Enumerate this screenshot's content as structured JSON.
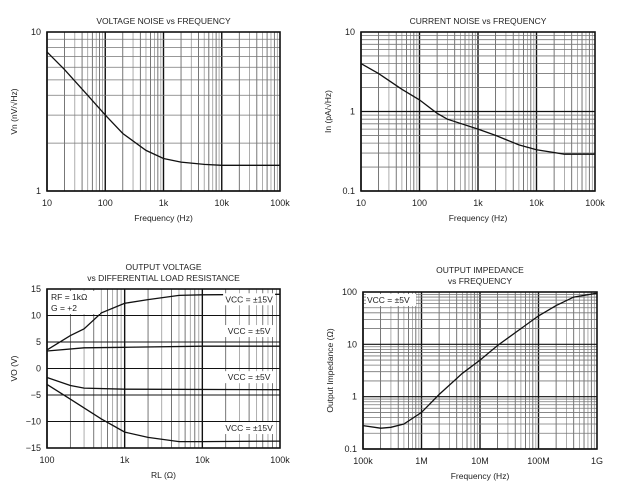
{
  "chart_data": [
    {
      "type": "line",
      "title": [
        "VOLTAGE NOISE vs FREQUENCY"
      ],
      "xlabel": "Frequency (Hz)",
      "ylabel": "Vn (nV/√Hz)",
      "xscale": "log",
      "yscale": "log",
      "xlim": [
        10,
        100000
      ],
      "ylim": [
        1,
        10
      ],
      "xticks": [
        {
          "v": 10,
          "label": "10"
        },
        {
          "v": 100,
          "label": "100"
        },
        {
          "v": 1000,
          "label": "1k"
        },
        {
          "v": 10000,
          "label": "10k"
        },
        {
          "v": 100000,
          "label": "100k"
        }
      ],
      "yticks": [
        {
          "v": 1,
          "label": "1"
        },
        {
          "v": 10,
          "label": "10"
        }
      ],
      "grid": true,
      "series": [
        {
          "name": "Vn",
          "x": [
            10,
            20,
            50,
            100,
            200,
            500,
            1000,
            2000,
            5000,
            10000,
            30000,
            100000
          ],
          "y": [
            7.5,
            5.8,
            4.0,
            3.0,
            2.3,
            1.8,
            1.6,
            1.52,
            1.47,
            1.45,
            1.45,
            1.45
          ]
        }
      ],
      "annotations": []
    },
    {
      "type": "line",
      "title": [
        "CURRENT NOISE vs FREQUENCY"
      ],
      "xlabel": "Frequency (Hz)",
      "ylabel": "In (pA/√Hz)",
      "xscale": "log",
      "yscale": "log",
      "xlim": [
        10,
        100000
      ],
      "ylim": [
        0.1,
        10
      ],
      "xticks": [
        {
          "v": 10,
          "label": "10"
        },
        {
          "v": 100,
          "label": "100"
        },
        {
          "v": 1000,
          "label": "1k"
        },
        {
          "v": 10000,
          "label": "10k"
        },
        {
          "v": 100000,
          "label": "100k"
        }
      ],
      "yticks": [
        {
          "v": 0.1,
          "label": "0.1"
        },
        {
          "v": 1,
          "label": "1"
        },
        {
          "v": 10,
          "label": "10"
        }
      ],
      "grid": true,
      "series": [
        {
          "name": "In",
          "x": [
            10,
            20,
            50,
            100,
            200,
            300,
            1000,
            2000,
            5000,
            10000,
            30000,
            100000
          ],
          "y": [
            4.0,
            3.0,
            1.9,
            1.4,
            0.95,
            0.8,
            0.6,
            0.5,
            0.38,
            0.33,
            0.29,
            0.29
          ]
        }
      ],
      "annotations": []
    },
    {
      "type": "line",
      "title": [
        "OUTPUT VOLTAGE",
        "vs DIFFERENTIAL LOAD RESISTANCE"
      ],
      "xlabel": "RL (Ω)",
      "ylabel": "VO (V)",
      "xscale": "log",
      "yscale": "linear",
      "xlim": [
        100,
        100000
      ],
      "ylim": [
        -15,
        15
      ],
      "xticks": [
        {
          "v": 100,
          "label": "100"
        },
        {
          "v": 1000,
          "label": "1k"
        },
        {
          "v": 10000,
          "label": "10k"
        },
        {
          "v": 100000,
          "label": "100k"
        }
      ],
      "yticks": [
        {
          "v": -15,
          "label": "−15"
        },
        {
          "v": -10,
          "label": "−10"
        },
        {
          "v": -5,
          "label": "−5"
        },
        {
          "v": 0,
          "label": "0"
        },
        {
          "v": 5,
          "label": "5"
        },
        {
          "v": 10,
          "label": "10"
        },
        {
          "v": 15,
          "label": "15"
        }
      ],
      "grid": true,
      "series": [
        {
          "name": "VCC = ±15V (positive)",
          "x": [
            100,
            200,
            300,
            500,
            1000,
            2000,
            5000,
            10000,
            100000
          ],
          "y": [
            3.5,
            6.2,
            7.5,
            10.5,
            12.3,
            13.0,
            13.8,
            13.9,
            14.0
          ]
        },
        {
          "name": "VCC = ±5V (positive)",
          "x": [
            100,
            300,
            1000,
            10000,
            100000
          ],
          "y": [
            3.3,
            3.9,
            4.0,
            4.2,
            4.2
          ]
        },
        {
          "name": "VCC = ±5V (negative)",
          "x": [
            100,
            200,
            300,
            1000,
            100000
          ],
          "y": [
            -1.7,
            -3.2,
            -3.7,
            -3.9,
            -4.0
          ]
        },
        {
          "name": "VCC = ±15V (negative)",
          "x": [
            100,
            200,
            500,
            1000,
            2000,
            5000,
            10000,
            100000
          ],
          "y": [
            -3.0,
            -5.8,
            -9.5,
            -12.0,
            -13.0,
            -13.8,
            -13.8,
            -13.7
          ]
        }
      ],
      "annotations": [
        {
          "text": "RF = 1kΩ",
          "pos": "top-left-1"
        },
        {
          "text": "G = +2",
          "pos": "top-left-2"
        },
        {
          "text": "VCC = ±15V",
          "at": [
            40000,
            12.5
          ]
        },
        {
          "text": "VCC = ±5V",
          "at": [
            40000,
            6.5
          ]
        },
        {
          "text": "VCC = ±5V",
          "at": [
            40000,
            -2.2
          ]
        },
        {
          "text": "VCC = ±15V",
          "at": [
            40000,
            -11.8
          ]
        }
      ]
    },
    {
      "type": "line",
      "title": [
        "OUTPUT IMPEDANCE",
        "vs FREQUENCY"
      ],
      "xlabel": "Frequency (Hz)",
      "ylabel": "Output Impedance (Ω)",
      "xscale": "log",
      "yscale": "log",
      "xlim": [
        100000,
        1000000000
      ],
      "ylim": [
        0.1,
        100
      ],
      "xticks": [
        {
          "v": 100000,
          "label": "100k"
        },
        {
          "v": 1000000,
          "label": "1M"
        },
        {
          "v": 10000000,
          "label": "10M"
        },
        {
          "v": 100000000,
          "label": "100M"
        },
        {
          "v": 1000000000,
          "label": "1G"
        }
      ],
      "yticks": [
        {
          "v": 0.1,
          "label": "0.1"
        },
        {
          "v": 1,
          "label": "1"
        },
        {
          "v": 10,
          "label": "10"
        },
        {
          "v": 100,
          "label": "100"
        }
      ],
      "grid": true,
      "series": [
        {
          "name": "Zout",
          "x": [
            100000,
            200000,
            300000,
            500000,
            1000000,
            2000000,
            5000000,
            10000000,
            20000000,
            50000000,
            100000000,
            200000000,
            400000000,
            1000000000
          ],
          "y": [
            0.28,
            0.25,
            0.26,
            0.3,
            0.5,
            1.1,
            2.8,
            5,
            9.5,
            20,
            35,
            55,
            80,
            95
          ]
        }
      ],
      "annotations": [
        {
          "text": "VCC = ±5V",
          "pos": "top-left-1"
        }
      ]
    }
  ]
}
